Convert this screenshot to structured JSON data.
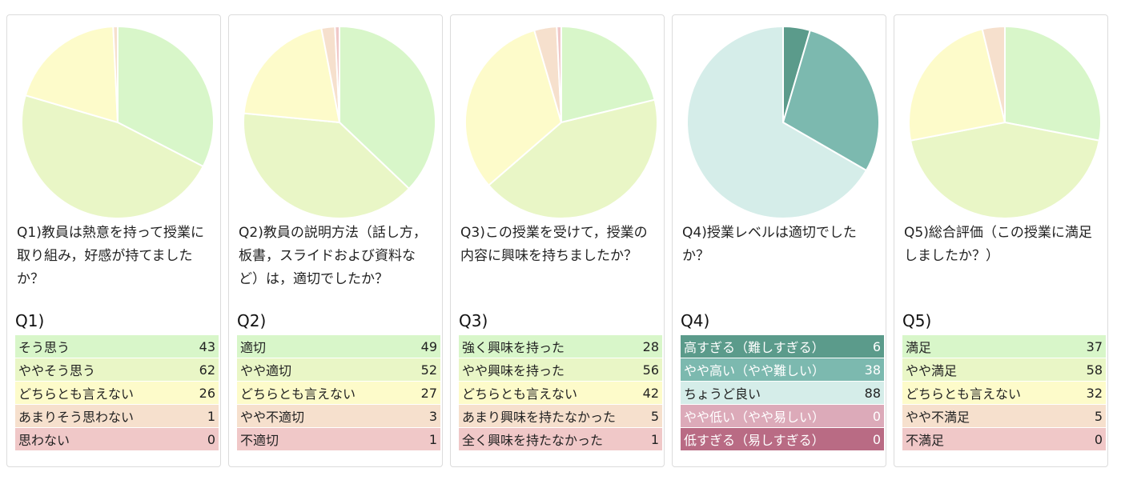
{
  "chart_data": [
    {
      "type": "pie",
      "title": "Q1)教員は熱意を持って授業に取り組み，好感が持てましたか？",
      "heading": "Q1)",
      "categories": [
        "そう思う",
        "ややそう思う",
        "どちらとも言えない",
        "あまりそう思わない",
        "思わない"
      ],
      "values": [
        43,
        62,
        26,
        1,
        0
      ],
      "colors": [
        "#d8f6c9",
        "#e9f6c6",
        "#fdfbca",
        "#f6e0cd",
        "#f0c8c8"
      ]
    },
    {
      "type": "pie",
      "title": "Q2)教員の説明方法（話し方，板書，スライドおよび資料など）は，適切でしたか？",
      "heading": "Q2)",
      "categories": [
        "適切",
        "やや適切",
        "どちらとも言えない",
        "やや不適切",
        "不適切"
      ],
      "values": [
        49,
        52,
        27,
        3,
        1
      ],
      "colors": [
        "#d8f6c9",
        "#e9f6c6",
        "#fdfbca",
        "#f6e0cd",
        "#f0c8c8"
      ]
    },
    {
      "type": "pie",
      "title": "Q3)この授業を受けて，授業の内容に興味を持ちましたか？",
      "heading": "Q3)",
      "categories": [
        "強く興味を持った",
        "やや興味を持った",
        "どちらとも言えない",
        "あまり興味を持たなかった",
        "全く興味を持たなかった"
      ],
      "values": [
        28,
        56,
        42,
        5,
        1
      ],
      "colors": [
        "#d8f6c9",
        "#e9f6c6",
        "#fdfbca",
        "#f6e0cd",
        "#f0c8c8"
      ]
    },
    {
      "type": "pie",
      "title": "Q4)授業レベルは適切でしたか？",
      "heading": "Q4)",
      "categories": [
        "高すぎる（難しすぎる）",
        "やや高い（やや難しい）",
        "ちょうど良い",
        "やや低い（やや易しい）",
        "低すぎる（易しすぎる）"
      ],
      "values": [
        6,
        38,
        88,
        0,
        0
      ],
      "colors": [
        "#5b9b8b",
        "#7cb9af",
        "#d5ede9",
        "#dcaab9",
        "#b96b84"
      ]
    },
    {
      "type": "pie",
      "title": "Q5)総合評価（この授業に満足しましたか？）",
      "heading": "Q5)",
      "categories": [
        "満足",
        "やや満足",
        "どちらとも言えない",
        "やや不満足",
        "不満足"
      ],
      "values": [
        37,
        58,
        32,
        5,
        0
      ],
      "colors": [
        "#d8f6c9",
        "#e9f6c6",
        "#fdfbca",
        "#f6e0cd",
        "#f0c8c8"
      ]
    }
  ]
}
